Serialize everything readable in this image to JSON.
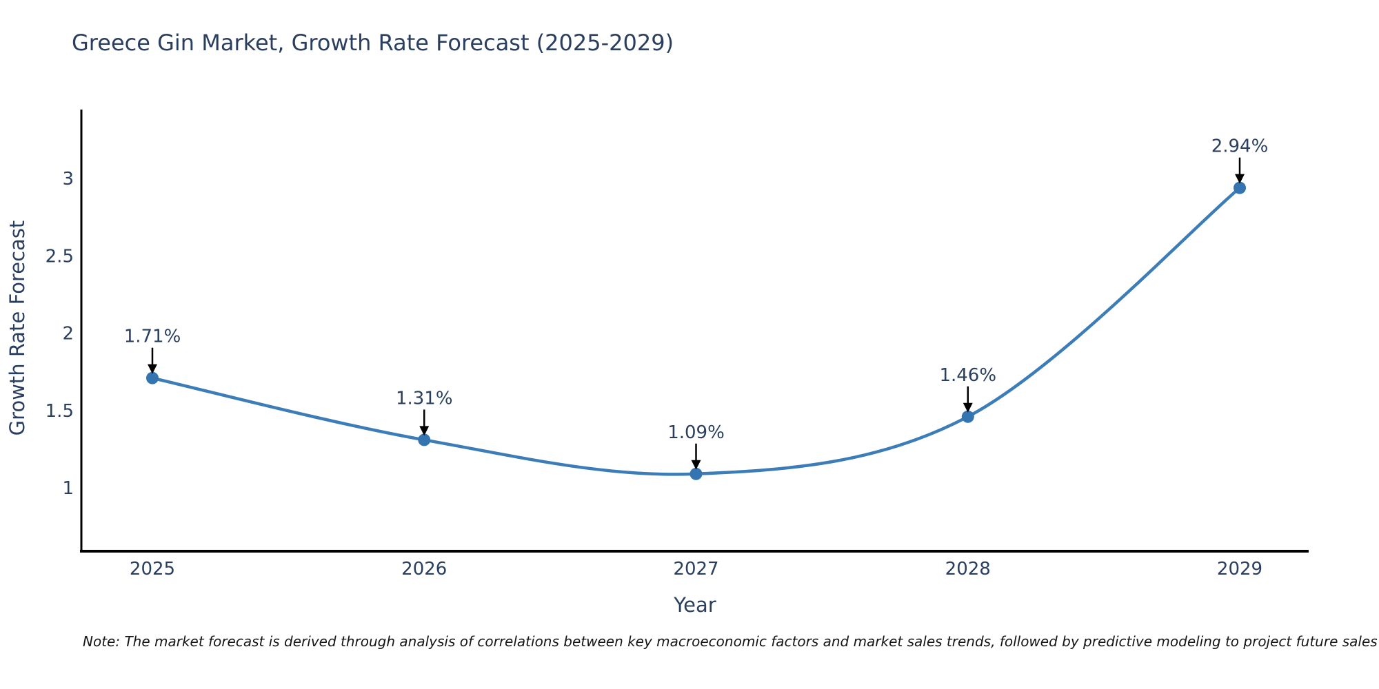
{
  "title": "Greece Gin Market, Growth Rate Forecast (2025-2029)",
  "note": "Note: The market forecast is derived through analysis of correlations between key macroeconomic factors and market sales trends, followed by predictive modeling to project future sales",
  "chart_data": {
    "type": "line",
    "line_shape": "spline",
    "title": "Greece Gin Market, Growth Rate Forecast (2025-2029)",
    "xlabel": "Year",
    "ylabel": "Growth Rate Forecast",
    "x": [
      2025,
      2026,
      2027,
      2028,
      2029
    ],
    "values": [
      1.71,
      1.31,
      1.09,
      1.46,
      2.94
    ],
    "point_labels": [
      "1.71%",
      "1.31%",
      "1.09%",
      "1.46%",
      "2.94%"
    ],
    "yticks": [
      1,
      1.5,
      2,
      2.5,
      3
    ],
    "ylim": [
      0.58,
      3.45
    ],
    "xlim": [
      2024.74,
      2029.25
    ],
    "grid": false,
    "legend": "none",
    "markers": true,
    "annotations_arrow": true,
    "colors": {
      "line": "#3c7db8",
      "marker": "#3474b0",
      "axis": "#000000",
      "tick_label": "#2a3f5f",
      "annotation_text": "#2a3f5f",
      "arrow": "#000000",
      "title": "#2a3f5f",
      "note": "#151515",
      "background": "#ffffff"
    }
  }
}
